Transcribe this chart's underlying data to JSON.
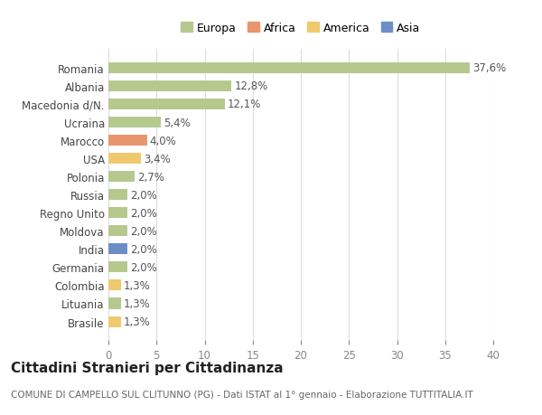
{
  "countries": [
    "Romania",
    "Albania",
    "Macedonia d/N.",
    "Ucraina",
    "Marocco",
    "USA",
    "Polonia",
    "Russia",
    "Regno Unito",
    "Moldova",
    "India",
    "Germania",
    "Colombia",
    "Lituania",
    "Brasile"
  ],
  "values": [
    37.6,
    12.8,
    12.1,
    5.4,
    4.0,
    3.4,
    2.7,
    2.0,
    2.0,
    2.0,
    2.0,
    2.0,
    1.3,
    1.3,
    1.3
  ],
  "labels": [
    "37,6%",
    "12,8%",
    "12,1%",
    "5,4%",
    "4,0%",
    "3,4%",
    "2,7%",
    "2,0%",
    "2,0%",
    "2,0%",
    "2,0%",
    "2,0%",
    "1,3%",
    "1,3%",
    "1,3%"
  ],
  "continents": [
    "Europa",
    "Europa",
    "Europa",
    "Europa",
    "Africa",
    "America",
    "Europa",
    "Europa",
    "Europa",
    "Europa",
    "Asia",
    "Europa",
    "America",
    "Europa",
    "America"
  ],
  "continent_colors": {
    "Europa": "#b5c98e",
    "Africa": "#e8956d",
    "America": "#f0c96e",
    "Asia": "#6b8fc4"
  },
  "legend_order": [
    "Europa",
    "Africa",
    "America",
    "Asia"
  ],
  "title": "Cittadini Stranieri per Cittadinanza",
  "subtitle": "COMUNE DI CAMPELLO SUL CLITUNNO (PG) - Dati ISTAT al 1° gennaio - Elaborazione TUTTITALIA.IT",
  "xlim": [
    0,
    40
  ],
  "xticks": [
    0,
    5,
    10,
    15,
    20,
    25,
    30,
    35,
    40
  ],
  "background_color": "#ffffff",
  "grid_color": "#dddddd",
  "bar_height": 0.6,
  "label_fontsize": 8.5,
  "tick_fontsize": 8.5,
  "title_fontsize": 11,
  "subtitle_fontsize": 7.5
}
